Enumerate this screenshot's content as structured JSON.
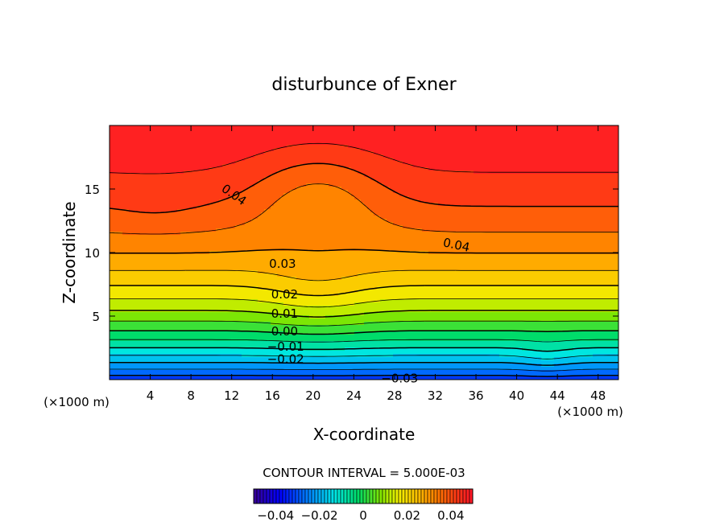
{
  "chart_data": {
    "type": "contour",
    "title": "disturbunce of Exner",
    "xlabel": "X-coordinate",
    "ylabel": "Z-coordinate",
    "x_unit": "(×1000 m)",
    "xlim": [
      0,
      50
    ],
    "ylim": [
      0,
      20
    ],
    "x_ticks": [
      4,
      8,
      12,
      16,
      20,
      24,
      28,
      32,
      36,
      40,
      44,
      48
    ],
    "y_ticks": [
      5,
      10,
      15
    ],
    "contour_interval_text": "CONTOUR INTERVAL = 5.000E-03",
    "contour_interval": 0.005,
    "contour_labels": [
      {
        "text": "0.04",
        "x": 12.0,
        "z": 14.6
      },
      {
        "text": "0.04",
        "x": 34.0,
        "z": 10.6
      },
      {
        "text": "0.03",
        "x": 17.0,
        "z": 9.1
      },
      {
        "text": "0.02",
        "x": 17.2,
        "z": 6.7
      },
      {
        "text": "0.01",
        "x": 17.2,
        "z": 5.2
      },
      {
        "text": "0.00",
        "x": 17.2,
        "z": 3.8
      },
      {
        "text": "−0.01",
        "x": 17.3,
        "z": 2.6
      },
      {
        "text": "−0.02",
        "x": 17.3,
        "z": 1.6
      },
      {
        "text": "−0.03",
        "x": 28.5,
        "z": 0.1
      }
    ],
    "levels": [
      -0.045,
      -0.04,
      -0.035,
      -0.03,
      -0.025,
      -0.02,
      -0.015,
      -0.01,
      -0.005,
      0.0,
      0.005,
      0.01,
      0.015,
      0.02,
      0.025,
      0.03,
      0.035,
      0.04,
      0.045
    ],
    "colorbar": {
      "range": [
        -0.05,
        0.05
      ],
      "tick_values": [
        -0.04,
        -0.02,
        0,
        0.02,
        0.04
      ],
      "tick_labels": [
        "−0.04",
        "−0.02",
        "0",
        "0.02",
        "0.04"
      ]
    },
    "grid": false
  }
}
